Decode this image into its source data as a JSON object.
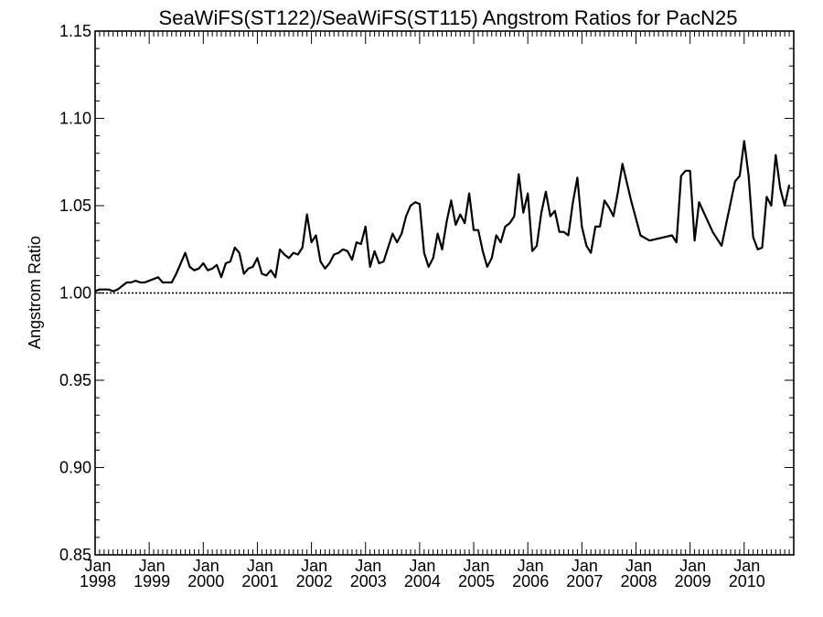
{
  "chart_data": {
    "type": "line",
    "title": "SeaWiFS(ST122)/SeaWiFS(ST115)  Angstrom Ratios for PacN25",
    "xlabel": "",
    "ylabel": "Angstrom Ratio",
    "ylim": [
      0.85,
      1.15
    ],
    "xlim": [
      "1998-01",
      "2010-12"
    ],
    "yticks": [
      "0.85",
      "0.90",
      "0.95",
      "1.00",
      "1.05",
      "1.10",
      "1.15"
    ],
    "xticks": [
      {
        "month": "Jan",
        "year": "1998"
      },
      {
        "month": "Jan",
        "year": "1999"
      },
      {
        "month": "Jan",
        "year": "2000"
      },
      {
        "month": "Jan",
        "year": "2001"
      },
      {
        "month": "Jan",
        "year": "2002"
      },
      {
        "month": "Jan",
        "year": "2003"
      },
      {
        "month": "Jan",
        "year": "2004"
      },
      {
        "month": "Jan",
        "year": "2005"
      },
      {
        "month": "Jan",
        "year": "2006"
      },
      {
        "month": "Jan",
        "year": "2007"
      },
      {
        "month": "Jan",
        "year": "2008"
      },
      {
        "month": "Jan",
        "year": "2009"
      },
      {
        "month": "Jan",
        "year": "2010"
      }
    ],
    "reference_line": 1.0,
    "grid": false,
    "series": [
      {
        "points": [
          [
            "1998-01",
            1.001
          ],
          [
            "1998-02",
            1.002
          ],
          [
            "1998-03",
            1.002
          ],
          [
            "1998-04",
            1.002
          ],
          [
            "1998-05",
            1.001
          ],
          [
            "1998-06",
            1.002
          ],
          [
            "1998-07",
            1.004
          ],
          [
            "1998-08",
            1.006
          ],
          [
            "1998-09",
            1.006
          ],
          [
            "1998-10",
            1.007
          ],
          [
            "1998-11",
            1.006
          ],
          [
            "1998-12",
            1.006
          ],
          [
            "1999-01",
            1.007
          ],
          [
            "1999-02",
            1.008
          ],
          [
            "1999-03",
            1.009
          ],
          [
            "1999-04",
            1.006
          ],
          [
            "1999-05",
            1.006
          ],
          [
            "1999-06",
            1.006
          ],
          [
            "1999-07",
            1.011
          ],
          [
            "1999-08",
            1.017
          ],
          [
            "1999-09",
            1.023
          ],
          [
            "1999-10",
            1.015
          ],
          [
            "1999-11",
            1.013
          ],
          [
            "1999-12",
            1.014
          ],
          [
            "2000-01",
            1.017
          ],
          [
            "2000-02",
            1.013
          ],
          [
            "2000-03",
            1.014
          ],
          [
            "2000-04",
            1.016
          ],
          [
            "2000-05",
            1.009
          ],
          [
            "2000-06",
            1.017
          ],
          [
            "2000-07",
            1.018
          ],
          [
            "2000-08",
            1.026
          ],
          [
            "2000-09",
            1.023
          ],
          [
            "2000-10",
            1.011
          ],
          [
            "2000-11",
            1.014
          ],
          [
            "2000-12",
            1.015
          ],
          [
            "2001-01",
            1.02
          ],
          [
            "2001-02",
            1.011
          ],
          [
            "2001-03",
            1.01
          ],
          [
            "2001-04",
            1.013
          ],
          [
            "2001-05",
            1.009
          ],
          [
            "2001-06",
            1.025
          ],
          [
            "2001-07",
            1.022
          ],
          [
            "2001-08",
            1.02
          ],
          [
            "2001-09",
            1.023
          ],
          [
            "2001-10",
            1.022
          ],
          [
            "2001-11",
            1.026
          ],
          [
            "2001-12",
            1.045
          ],
          [
            "2002-01",
            1.029
          ],
          [
            "2002-02",
            1.033
          ],
          [
            "2002-03",
            1.018
          ],
          [
            "2002-04",
            1.014
          ],
          [
            "2002-05",
            1.017
          ],
          [
            "2002-06",
            1.022
          ],
          [
            "2002-07",
            1.023
          ],
          [
            "2002-08",
            1.025
          ],
          [
            "2002-09",
            1.024
          ],
          [
            "2002-10",
            1.019
          ],
          [
            "2002-11",
            1.029
          ],
          [
            "2002-12",
            1.028
          ],
          [
            "2003-01",
            1.038
          ],
          [
            "2003-02",
            1.015
          ],
          [
            "2003-03",
            1.024
          ],
          [
            "2003-04",
            1.017
          ],
          [
            "2003-05",
            1.018
          ],
          [
            "2003-06",
            1.026
          ],
          [
            "2003-07",
            1.034
          ],
          [
            "2003-08",
            1.029
          ],
          [
            "2003-09",
            1.034
          ],
          [
            "2003-10",
            1.044
          ],
          [
            "2003-11",
            1.05
          ],
          [
            "2003-12",
            1.052
          ],
          [
            "2004-01",
            1.051
          ],
          [
            "2004-02",
            1.023
          ],
          [
            "2004-03",
            1.015
          ],
          [
            "2004-04",
            1.02
          ],
          [
            "2004-05",
            1.034
          ],
          [
            "2004-06",
            1.025
          ],
          [
            "2004-07",
            1.041
          ],
          [
            "2004-08",
            1.053
          ],
          [
            "2004-09",
            1.039
          ],
          [
            "2004-10",
            1.045
          ],
          [
            "2004-11",
            1.04
          ],
          [
            "2004-12",
            1.057
          ],
          [
            "2005-01",
            1.036
          ],
          [
            "2005-02",
            1.036
          ],
          [
            "2005-03",
            1.024
          ],
          [
            "2005-04",
            1.015
          ],
          [
            "2005-05",
            1.02
          ],
          [
            "2005-06",
            1.033
          ],
          [
            "2005-07",
            1.029
          ],
          [
            "2005-08",
            1.038
          ],
          [
            "2005-09",
            1.04
          ],
          [
            "2005-10",
            1.044
          ],
          [
            "2005-11",
            1.068
          ],
          [
            "2005-12",
            1.046
          ],
          [
            "2006-01",
            1.057
          ],
          [
            "2006-02",
            1.024
          ],
          [
            "2006-03",
            1.027
          ],
          [
            "2006-04",
            1.046
          ],
          [
            "2006-05",
            1.058
          ],
          [
            "2006-06",
            1.044
          ],
          [
            "2006-07",
            1.047
          ],
          [
            "2006-08",
            1.035
          ],
          [
            "2006-09",
            1.035
          ],
          [
            "2006-10",
            1.033
          ],
          [
            "2006-11",
            1.052
          ],
          [
            "2006-12",
            1.066
          ],
          [
            "2007-01",
            1.038
          ],
          [
            "2007-02",
            1.027
          ],
          [
            "2007-03",
            1.023
          ],
          [
            "2007-04",
            1.038
          ],
          [
            "2007-05",
            1.038
          ],
          [
            "2007-06",
            1.053
          ],
          [
            "2007-07",
            1.049
          ],
          [
            "2007-08",
            1.044
          ],
          [
            "2007-09",
            1.058
          ],
          [
            "2007-10",
            1.074
          ],
          [
            "2007-11",
            1.063
          ],
          [
            "2007-12",
            1.052
          ],
          [
            "2008-02",
            1.033
          ],
          [
            "2008-04",
            1.03
          ],
          [
            "2008-09",
            1.033
          ],
          [
            "2008-10",
            1.029
          ],
          [
            "2008-11",
            1.067
          ],
          [
            "2008-12",
            1.07
          ],
          [
            "2009-01",
            1.07
          ],
          [
            "2009-02",
            1.03
          ],
          [
            "2009-03",
            1.052
          ],
          [
            "2009-06",
            1.035
          ],
          [
            "2009-08",
            1.027
          ],
          [
            "2009-11",
            1.064
          ],
          [
            "2009-12",
            1.067
          ],
          [
            "2010-01",
            1.087
          ],
          [
            "2010-02",
            1.067
          ],
          [
            "2010-03",
            1.032
          ],
          [
            "2010-04",
            1.025
          ],
          [
            "2010-05",
            1.026
          ],
          [
            "2010-06",
            1.055
          ],
          [
            "2010-07",
            1.05
          ],
          [
            "2010-08",
            1.079
          ],
          [
            "2010-09",
            1.06
          ],
          [
            "2010-10",
            1.05
          ],
          [
            "2010-11",
            1.062
          ]
        ]
      }
    ]
  }
}
